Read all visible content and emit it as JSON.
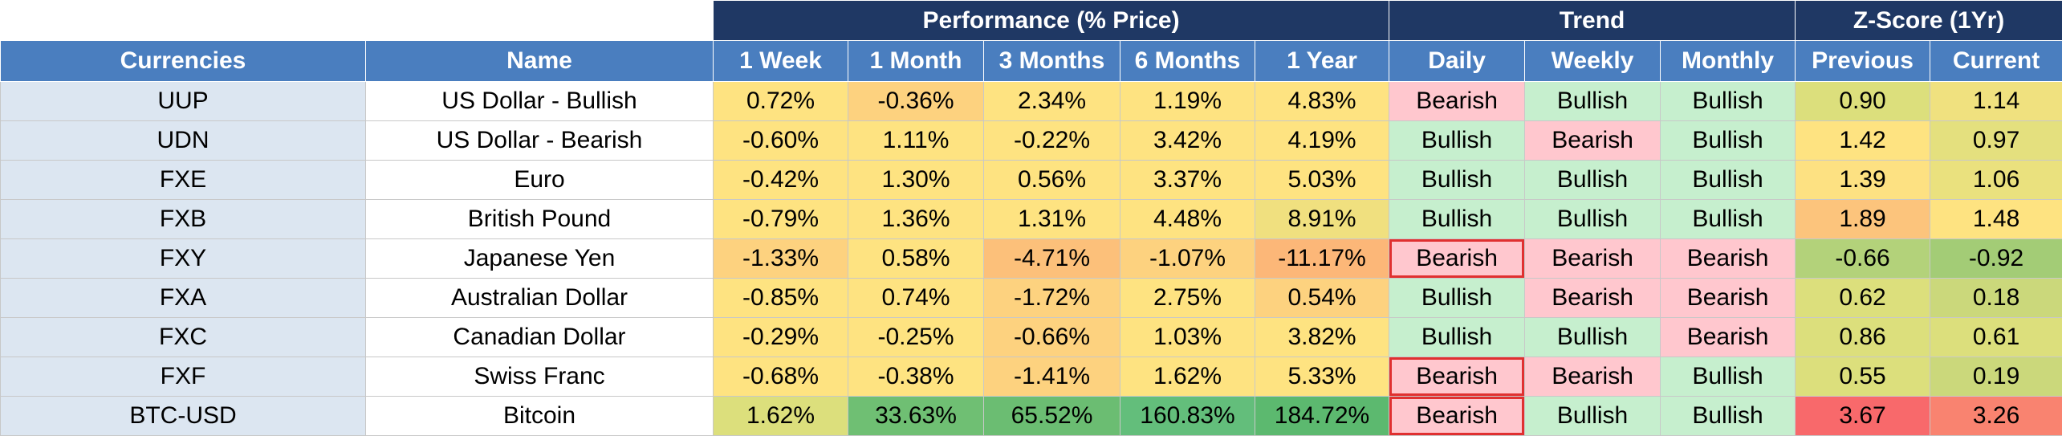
{
  "groups": {
    "performance": "Performance (% Price)",
    "trend": "Trend",
    "zscore": "Z-Score (1Yr)"
  },
  "headers": [
    "Currencies",
    "Name",
    "1 Week",
    "1 Month",
    "3 Months",
    "6 Months",
    "1 Year",
    "Daily",
    "Weekly",
    "Monthly",
    "Previous",
    "Current"
  ],
  "colors": {
    "group_header": "#1f3864",
    "column_header": "#4a7ebf",
    "symbol_cell": "#dce6f1",
    "bullish": "#c6efce",
    "bearish": "#ffc7ce",
    "highlight_outline": "#e03030"
  },
  "rows": [
    {
      "symbol": "UUP",
      "name": "US Dollar - Bullish",
      "perf": [
        "0.72%",
        "-0.36%",
        "2.34%",
        "1.19%",
        "4.83%"
      ],
      "perf_colors": [
        "#fee381",
        "#fdd27f",
        "#fee381",
        "#fee381",
        "#fee381"
      ],
      "trend": [
        "Bearish",
        "Bullish",
        "Bullish"
      ],
      "trend_outlined": [
        false,
        false,
        false
      ],
      "z": [
        "0.90",
        "1.14"
      ],
      "z_colors": [
        "#dcdf7c",
        "#f0e17f"
      ]
    },
    {
      "symbol": "UDN",
      "name": "US Dollar - Bearish",
      "perf": [
        "-0.60%",
        "1.11%",
        "-0.22%",
        "3.42%",
        "4.19%"
      ],
      "perf_colors": [
        "#fee381",
        "#fee381",
        "#fee381",
        "#fee381",
        "#fee381"
      ],
      "trend": [
        "Bullish",
        "Bearish",
        "Bullish"
      ],
      "trend_outlined": [
        false,
        false,
        false
      ],
      "z": [
        "1.42",
        "0.97"
      ],
      "z_colors": [
        "#fee381",
        "#e4e07e"
      ]
    },
    {
      "symbol": "FXE",
      "name": "Euro",
      "perf": [
        "-0.42%",
        "1.30%",
        "0.56%",
        "3.37%",
        "5.03%"
      ],
      "perf_colors": [
        "#fee381",
        "#fee381",
        "#fee381",
        "#fee381",
        "#fee381"
      ],
      "trend": [
        "Bullish",
        "Bullish",
        "Bullish"
      ],
      "trend_outlined": [
        false,
        false,
        false
      ],
      "z": [
        "1.39",
        "1.06"
      ],
      "z_colors": [
        "#fde182",
        "#eae17e"
      ]
    },
    {
      "symbol": "FXB",
      "name": "British Pound",
      "perf": [
        "-0.79%",
        "1.36%",
        "1.31%",
        "4.48%",
        "8.91%"
      ],
      "perf_colors": [
        "#fee381",
        "#fee381",
        "#fee381",
        "#fee381",
        "#f0e07f"
      ],
      "trend": [
        "Bullish",
        "Bullish",
        "Bullish"
      ],
      "trend_outlined": [
        false,
        false,
        false
      ],
      "z": [
        "1.89",
        "1.48"
      ],
      "z_colors": [
        "#fcc47c",
        "#fee381"
      ]
    },
    {
      "symbol": "FXY",
      "name": "Japanese Yen",
      "perf": [
        "-1.33%",
        "0.58%",
        "-4.71%",
        "-1.07%",
        "-11.17%"
      ],
      "perf_colors": [
        "#fdd27f",
        "#fee381",
        "#fcc07a",
        "#fdd27f",
        "#fcb778"
      ],
      "trend": [
        "Bearish",
        "Bearish",
        "Bearish"
      ],
      "trend_outlined": [
        true,
        false,
        false
      ],
      "z": [
        "-0.66",
        "-0.92"
      ],
      "z_colors": [
        "#b3d27a",
        "#a3cc76"
      ]
    },
    {
      "symbol": "FXA",
      "name": "Australian Dollar",
      "perf": [
        "-0.85%",
        "0.74%",
        "-1.72%",
        "2.75%",
        "0.54%"
      ],
      "perf_colors": [
        "#fee381",
        "#fee381",
        "#fdd27f",
        "#fee381",
        "#fdd27f"
      ],
      "trend": [
        "Bullish",
        "Bearish",
        "Bearish"
      ],
      "trend_outlined": [
        false,
        false,
        false
      ],
      "z": [
        "0.62",
        "0.18"
      ],
      "z_colors": [
        "#dcdf7c",
        "#cbd87b"
      ]
    },
    {
      "symbol": "FXC",
      "name": "Canadian Dollar",
      "perf": [
        "-0.29%",
        "-0.25%",
        "-0.66%",
        "1.03%",
        "3.82%"
      ],
      "perf_colors": [
        "#fee381",
        "#fee381",
        "#fdd27f",
        "#fee381",
        "#fee381"
      ],
      "trend": [
        "Bullish",
        "Bullish",
        "Bearish"
      ],
      "trend_outlined": [
        false,
        false,
        false
      ],
      "z": [
        "0.86",
        "0.61"
      ],
      "z_colors": [
        "#dcdf7c",
        "#dcdf7c"
      ]
    },
    {
      "symbol": "FXF",
      "name": "Swiss Franc",
      "perf": [
        "-0.68%",
        "-0.38%",
        "-1.41%",
        "1.62%",
        "5.33%"
      ],
      "perf_colors": [
        "#fee381",
        "#fee381",
        "#fdd27f",
        "#fee381",
        "#fee381"
      ],
      "trend": [
        "Bearish",
        "Bearish",
        "Bullish"
      ],
      "trend_outlined": [
        true,
        false,
        false
      ],
      "z": [
        "0.55",
        "0.19"
      ],
      "z_colors": [
        "#dcdf7c",
        "#cbd87b"
      ]
    },
    {
      "symbol": "BTC-USD",
      "name": "Bitcoin",
      "perf": [
        "1.62%",
        "33.63%",
        "65.52%",
        "160.83%",
        "184.72%"
      ],
      "perf_colors": [
        "#dcdf7c",
        "#6fbf73",
        "#6bbd72",
        "#63be7b",
        "#5cb96f"
      ],
      "trend": [
        "Bearish",
        "Bullish",
        "Bullish"
      ],
      "trend_outlined": [
        true,
        false,
        false
      ],
      "z": [
        "3.67",
        "3.26"
      ],
      "z_colors": [
        "#f8696b",
        "#f98370"
      ]
    }
  ]
}
